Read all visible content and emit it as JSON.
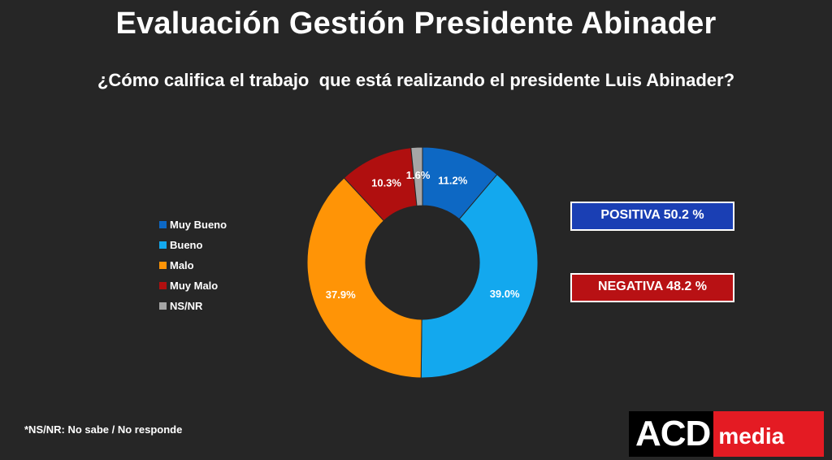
{
  "title": "Evaluación Gestión Presidente Abinader",
  "subtitle": "¿Cómo califica el trabajo  que está realizando el presidente Luis Abinader?",
  "chart_data": {
    "type": "pie",
    "style": "donut",
    "title": "Evaluación Gestión Presidente Abinader",
    "subtitle": "¿Cómo califica el trabajo  que está realizando el presidente Luis Abinader?",
    "legend_position": "left",
    "categories": [
      "Muy Bueno",
      "Bueno",
      "Malo",
      "Muy Malo",
      "NS/NR"
    ],
    "values": [
      11.2,
      39.0,
      37.9,
      10.3,
      1.6
    ],
    "labels": [
      "11.2%",
      "39.0%",
      "37.9%",
      "10.3%",
      "1.6%"
    ],
    "colors": [
      "#0d68c4",
      "#13a8ee",
      "#ff9406",
      "#b00f0f",
      "#a6a6a6"
    ]
  },
  "summary": {
    "positive": "POSITIVA 50.2 %",
    "negative": "NEGATIVA 48.2 %",
    "positive_color": "#1a3fb4",
    "negative_color": "#b81114"
  },
  "footnote": "*NS/NR: No sabe / No responde",
  "logo": {
    "acd": "ACD",
    "media": "media"
  }
}
